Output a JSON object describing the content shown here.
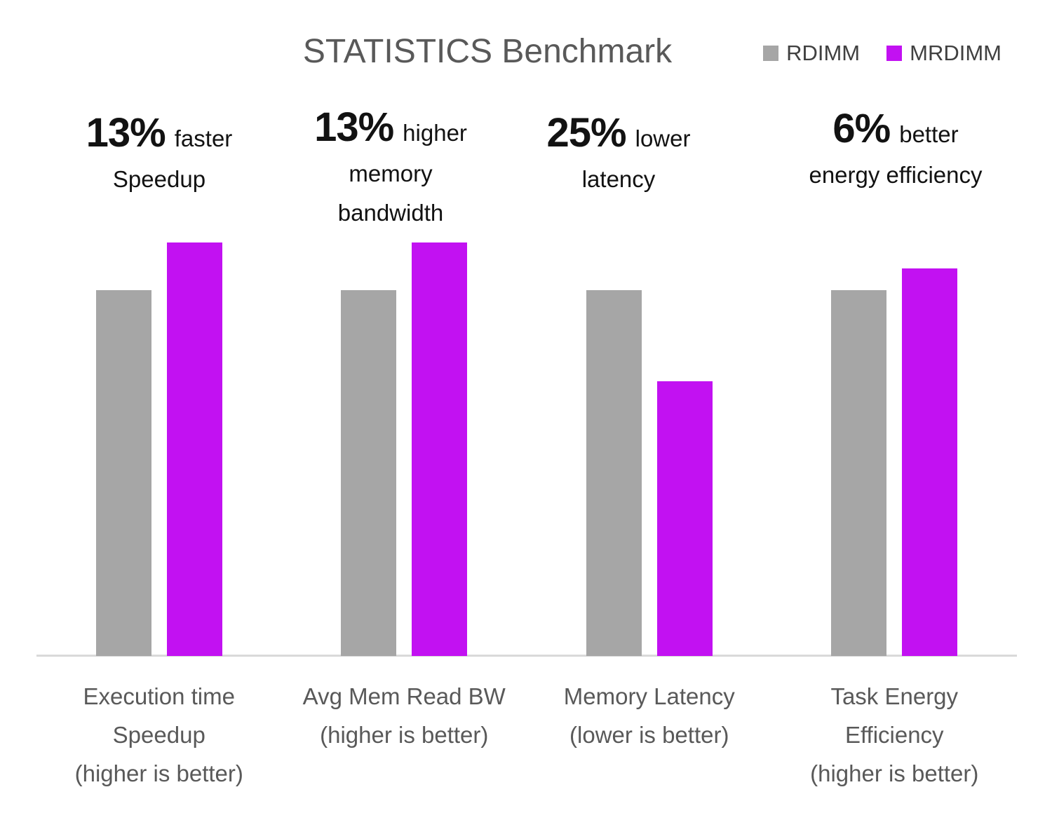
{
  "title": "STATISTICS Benchmark",
  "colors": {
    "rdimm_bar": "#a6a6a6",
    "mrdimm_bar": "#c211f2",
    "axis_line": "#d9d9d9",
    "title_text": "#595959",
    "category_text": "#595959",
    "legend_text": "#404040",
    "annotation_text": "#121212",
    "background": "#ffffff"
  },
  "legend": {
    "position": "top-right",
    "items": [
      {
        "label": "RDIMM",
        "color": "#a6a6a6"
      },
      {
        "label": "MRDIMM",
        "color": "#c211f2"
      }
    ]
  },
  "chart_data": {
    "type": "bar",
    "title": "STATISTICS Benchmark",
    "categories": [
      "Execution time Speedup (higher is better)",
      "Avg Mem Read BW (higher is better)",
      "Memory Latency (lower is better)",
      "Task Energy Efficiency (higher is better)"
    ],
    "category_label_lines": [
      [
        "Execution time",
        "Speedup",
        "(higher is better)"
      ],
      [
        "Avg Mem Read BW",
        "(higher is better)"
      ],
      [
        "Memory Latency",
        "(lower is better)"
      ],
      [
        "Task Energy",
        "Efficiency",
        "(higher is better)"
      ]
    ],
    "series": [
      {
        "name": "RDIMM",
        "color": "#a6a6a6",
        "values": [
          1.0,
          1.0,
          1.0,
          1.0
        ]
      },
      {
        "name": "MRDIMM",
        "color": "#c211f2",
        "values": [
          1.13,
          1.13,
          0.75,
          1.06
        ]
      }
    ],
    "annotations": [
      {
        "stat": "13%",
        "qualifier": "faster",
        "extra_lines": [
          "Speedup"
        ]
      },
      {
        "stat": "13%",
        "qualifier": "higher",
        "extra_lines": [
          "memory",
          "bandwidth"
        ]
      },
      {
        "stat": "25%",
        "qualifier": "lower",
        "extra_lines": [
          "latency"
        ]
      },
      {
        "stat": "6%",
        "qualifier": "better",
        "extra_lines": [
          "energy efficiency"
        ]
      }
    ],
    "value_axis_visible": false,
    "gridlines": false,
    "ylim": [
      0,
      1.42
    ],
    "legend_position": "top-right"
  }
}
